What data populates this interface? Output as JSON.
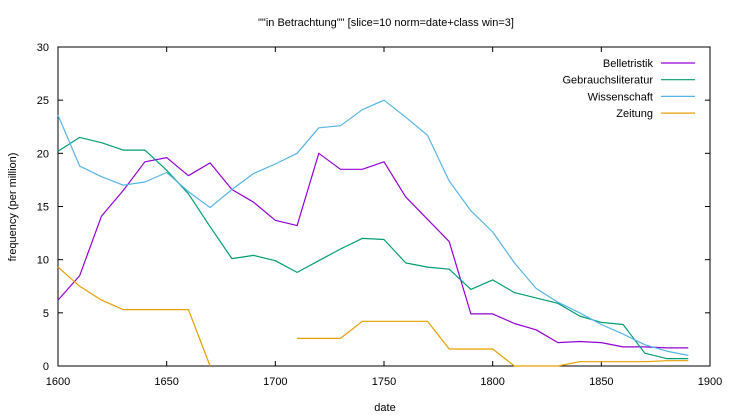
{
  "chart_data": {
    "type": "line",
    "title": "\"\"in Betrachtung\"\" [slice=10 norm=date+class win=3]",
    "xlabel": "date",
    "ylabel": "frequency (per million)",
    "xlim": [
      1600,
      1900
    ],
    "ylim": [
      0,
      30
    ],
    "xticks": [
      1600,
      1650,
      1700,
      1750,
      1800,
      1850,
      1900
    ],
    "yticks": [
      0,
      5,
      10,
      15,
      20,
      25,
      30
    ],
    "grid": false,
    "legend_position": "top-right",
    "x": [
      1600,
      1610,
      1620,
      1630,
      1640,
      1650,
      1660,
      1670,
      1680,
      1690,
      1700,
      1710,
      1720,
      1730,
      1740,
      1750,
      1760,
      1770,
      1780,
      1790,
      1800,
      1810,
      1820,
      1830,
      1840,
      1850,
      1860,
      1870,
      1880,
      1890
    ],
    "series": [
      {
        "name": "Belletristik",
        "color": "#9400d3",
        "values": [
          6.2,
          8.5,
          14.1,
          16.5,
          19.2,
          19.6,
          17.9,
          19.1,
          16.6,
          15.4,
          13.7,
          13.2,
          20.0,
          18.5,
          18.5,
          19.2,
          15.9,
          13.8,
          11.7,
          4.9,
          4.9,
          4.0,
          3.4,
          2.2,
          2.3,
          2.2,
          1.8,
          1.8,
          1.7,
          1.7
        ]
      },
      {
        "name": "Gebrauchsliteratur",
        "color": "#009e73",
        "values": [
          20.2,
          21.5,
          21.0,
          20.3,
          20.3,
          18.4,
          16.2,
          13.1,
          10.1,
          10.4,
          9.9,
          8.8,
          9.9,
          11.0,
          12.0,
          11.9,
          9.7,
          9.3,
          9.1,
          7.2,
          8.1,
          6.9,
          6.4,
          5.9,
          4.7,
          4.1,
          3.9,
          1.2,
          0.7,
          0.7
        ]
      },
      {
        "name": "Wissenschaft",
        "color": "#56b4e9",
        "values": [
          23.6,
          18.8,
          17.8,
          17.0,
          17.3,
          18.2,
          16.4,
          14.9,
          16.6,
          18.1,
          19.0,
          20.0,
          22.4,
          22.6,
          24.1,
          25.0,
          23.4,
          21.7,
          17.4,
          14.6,
          12.6,
          9.7,
          7.3,
          6.0,
          5.0,
          3.9,
          3.0,
          2.0,
          1.4,
          1.0
        ]
      },
      {
        "name": "Zeitung",
        "color": "#e69f00",
        "values": [
          9.3,
          7.5,
          6.2,
          5.3,
          5.3,
          5.3,
          5.3,
          0.0,
          null,
          null,
          null,
          2.6,
          2.6,
          2.6,
          4.2,
          4.2,
          4.2,
          4.2,
          1.6,
          1.6,
          1.6,
          0.0,
          0.0,
          0.0,
          0.4,
          0.4,
          0.4,
          0.4,
          0.5,
          0.5
        ]
      }
    ]
  }
}
